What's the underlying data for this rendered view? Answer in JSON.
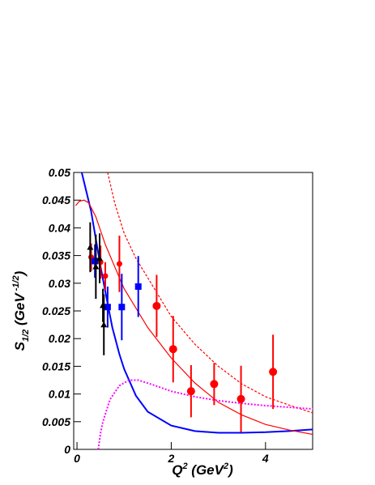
{
  "chart_data": {
    "type": "scatter",
    "xlim": [
      -0.07,
      5
    ],
    "ylim": [
      0,
      0.05
    ],
    "xticks": [
      0,
      2,
      4
    ],
    "yticks": [
      0,
      0.005,
      0.01,
      0.015,
      0.02,
      0.025,
      0.03,
      0.035,
      0.04,
      0.045,
      0.05
    ],
    "xlabel": {
      "base": "Q",
      "sup": "2",
      "text": " (GeV",
      "sup2": "2",
      "end": ")"
    },
    "ylabel": {
      "base": "S",
      "sub": "1/2",
      "text": " (GeV",
      "sup": " -1/2",
      "end": ")"
    },
    "series": [
      {
        "kind": "line",
        "color": "#0000ff",
        "width": 2,
        "dash": "none",
        "x": [
          0.1,
          0.2,
          0.3,
          0.4,
          0.5,
          0.6,
          0.75,
          0.9,
          1.0,
          1.25,
          1.5,
          2.0,
          2.5,
          3.0,
          3.5,
          4.0,
          4.5,
          5.0
        ],
        "values": [
          0.05,
          0.0465,
          0.043,
          0.038,
          0.033,
          0.0285,
          0.022,
          0.0172,
          0.0145,
          0.0097,
          0.0068,
          0.0043,
          0.0033,
          0.003,
          0.003,
          0.0031,
          0.0033,
          0.0036
        ]
      },
      {
        "kind": "line",
        "color": "#ff0000",
        "width": 1.2,
        "dash": "none",
        "x": [
          -0.03,
          0.05,
          0.15,
          0.25,
          0.4,
          0.6,
          0.8,
          1.0,
          1.5,
          2.0,
          2.5,
          3.0,
          3.5,
          4.0,
          4.5,
          5.0
        ],
        "values": [
          0.044,
          0.0448,
          0.045,
          0.0445,
          0.042,
          0.037,
          0.033,
          0.029,
          0.022,
          0.0165,
          0.012,
          0.0085,
          0.0062,
          0.0045,
          0.0035,
          0.0027
        ]
      },
      {
        "kind": "line",
        "color": "#ff0000",
        "width": 1.2,
        "dash": "3,2",
        "x": [
          0.65,
          0.8,
          1.0,
          1.25,
          1.5,
          2.0,
          2.5,
          3.0,
          3.5,
          4.0,
          4.5,
          5.0
        ],
        "values": [
          0.05,
          0.0445,
          0.039,
          0.0345,
          0.031,
          0.024,
          0.019,
          0.015,
          0.0118,
          0.0095,
          0.008,
          0.0066
        ]
      },
      {
        "kind": "line",
        "color": "#ff00ff",
        "width": 2,
        "dash": "2,2",
        "x": [
          0.45,
          0.5,
          0.55,
          0.7,
          0.9,
          1.1,
          1.3,
          1.6,
          2.0,
          2.5,
          3.0,
          3.5,
          4.0,
          4.5,
          5.0
        ],
        "values": [
          0,
          0.003,
          0.005,
          0.009,
          0.0115,
          0.0125,
          0.0125,
          0.0117,
          0.0105,
          0.0095,
          0.0088,
          0.0083,
          0.0079,
          0.0076,
          0.0073
        ]
      },
      {
        "kind": "points",
        "marker": "circle",
        "size": 5,
        "color": "#ff0000",
        "x": [
          1.69,
          2.04,
          2.42,
          2.91,
          3.48,
          4.16
        ],
        "values": [
          0.0259,
          0.0181,
          0.0105,
          0.0118,
          0.0091,
          0.014
        ],
        "errors": [
          0.0056,
          0.006,
          0.0047,
          0.0038,
          0.006,
          0.0067
        ]
      },
      {
        "kind": "points",
        "marker": "circle",
        "size": 3.5,
        "color": "#ff0000",
        "x": [
          0.3,
          0.5,
          0.6,
          0.9
        ],
        "values": [
          0.0347,
          0.0338,
          0.0313,
          0.0335
        ],
        "errors": [
          0.0025,
          0.003,
          0.0025,
          0.0051
        ]
      },
      {
        "kind": "points",
        "marker": "square",
        "size": 4,
        "color": "#0000ff",
        "x": [
          0.38,
          0.65,
          0.95,
          1.3
        ],
        "values": [
          0.034,
          0.0257,
          0.0257,
          0.0294
        ],
        "errors": [
          0.003,
          0.0037,
          0.006,
          0.0055
        ]
      },
      {
        "kind": "points",
        "marker": "triangle",
        "size": 4,
        "color": "#000000",
        "x": [
          0.28,
          0.4,
          0.48,
          0.55,
          0.57
        ],
        "values": [
          0.0365,
          0.033,
          0.0345,
          0.026,
          0.0225
        ],
        "errors": [
          0.0045,
          0.0058,
          0.0045,
          0.003,
          0.0055
        ]
      }
    ]
  }
}
